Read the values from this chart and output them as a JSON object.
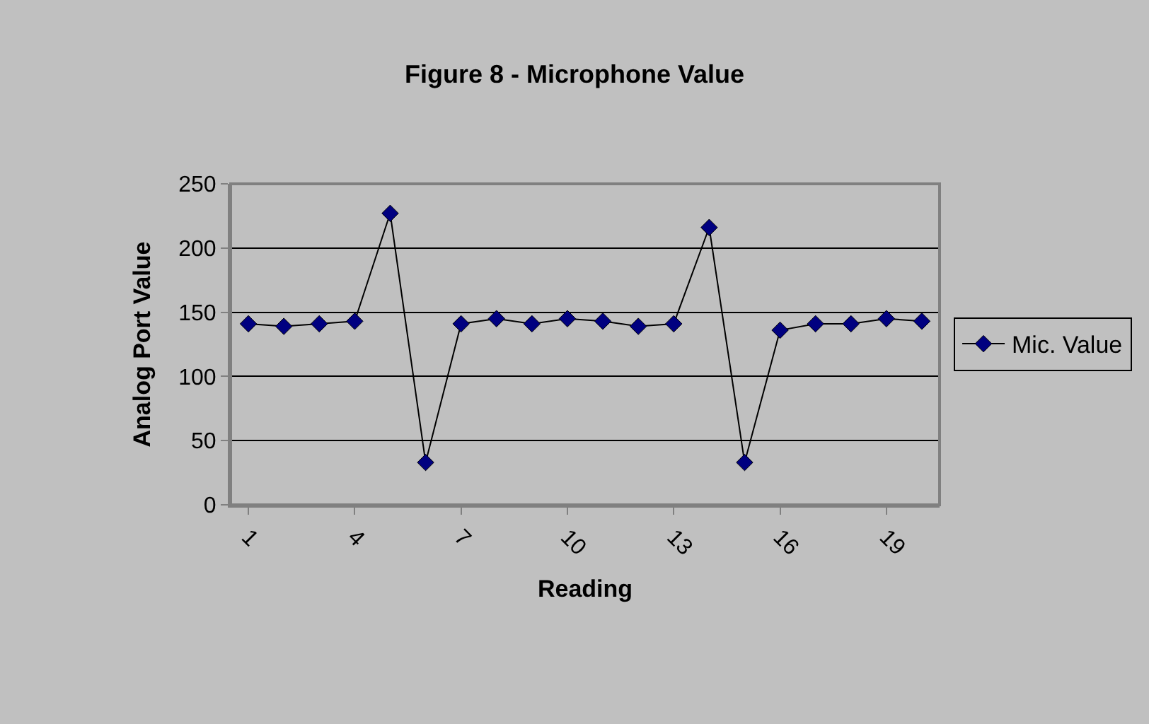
{
  "chart_data": {
    "type": "line",
    "title": "Figure 8 - Microphone Value",
    "xlabel": "Reading",
    "ylabel": "Analog Port Value",
    "categories": [
      "1",
      null,
      null,
      "4",
      null,
      null,
      "7",
      null,
      null,
      "10",
      null,
      null,
      "13",
      null,
      null,
      "16",
      null,
      null,
      "19",
      null
    ],
    "series": [
      {
        "name": "Mic. Value",
        "color": "#000080",
        "values": [
          141,
          139,
          141,
          143,
          227,
          33,
          141,
          145,
          141,
          145,
          143,
          139,
          141,
          216,
          33,
          136,
          141,
          141,
          145,
          143
        ]
      }
    ],
    "ylim": [
      0,
      250
    ],
    "yticks": [
      0,
      50,
      100,
      150,
      200,
      250
    ],
    "grid": "y",
    "legend": "right",
    "marker": "diamond",
    "line_style": "solid"
  }
}
